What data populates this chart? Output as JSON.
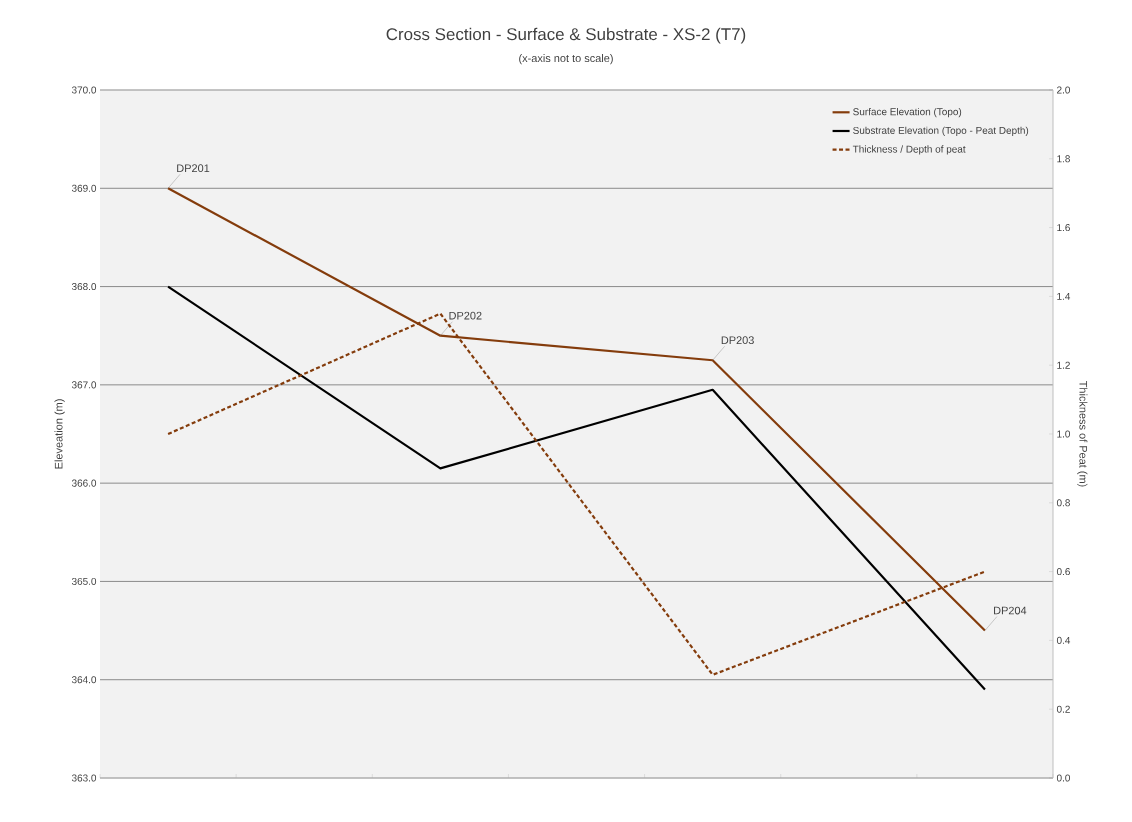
{
  "chart_data": {
    "type": "line",
    "title": "Cross Section - Surface & Substrate - XS-2 (T7)",
    "subtitle": "(x-axis not to scale)",
    "ylabel": "Eleveation (m)",
    "y2label": "Thickness of Peat (m)",
    "categories": [
      null,
      null,
      null,
      null,
      null,
      null,
      null
    ],
    "series": [
      {
        "name": "Surface Elevation (Topo)",
        "color": "#843c0c",
        "line_style": "solid",
        "values": [
          369.0,
          null,
          367.5,
          null,
          367.25,
          null,
          364.5
        ]
      },
      {
        "name": "Substrate Elevation (Topo - Peat Depth)",
        "color": "#000000",
        "line_style": "solid",
        "values": [
          368.0,
          null,
          366.15,
          null,
          366.95,
          null,
          363.9
        ]
      },
      {
        "name": "Thickness / Depth of peat",
        "color": "#843c0c",
        "line_style": "dashed",
        "axis": "y2",
        "values": [
          1.0,
          null,
          1.35,
          null,
          0.3,
          null,
          0.6
        ]
      }
    ],
    "ylim": [
      363,
      370
    ],
    "yticks": [
      {
        "value": 363,
        "label": "363.0"
      },
      {
        "value": 364,
        "label": "364.0"
      },
      {
        "value": 365,
        "label": "365.0"
      },
      {
        "value": 366,
        "label": "366.0"
      },
      {
        "value": 367,
        "label": "367.0"
      },
      {
        "value": 368,
        "label": "368.0"
      },
      {
        "value": 369,
        "label": "369.0"
      },
      {
        "value": 370,
        "label": "370.0"
      }
    ],
    "y2lim": [
      0,
      2
    ],
    "y2ticks": [
      {
        "value": 0,
        "label": "0.0"
      },
      {
        "value": 0.2,
        "label": "0.2"
      },
      {
        "value": 0.4,
        "label": "0.4"
      },
      {
        "value": 0.6,
        "label": "0.6"
      },
      {
        "value": 0.8,
        "label": "0.8"
      },
      {
        "value": 1.0,
        "label": "1.0"
      },
      {
        "value": 1.2,
        "label": "1.2"
      },
      {
        "value": 1.4,
        "label": "1.4"
      },
      {
        "value": 1.6,
        "label": "1.6"
      },
      {
        "value": 1.8,
        "label": "1.8"
      },
      {
        "value": 2.0,
        "label": "2.0"
      }
    ],
    "grid": "y",
    "legend": "top right",
    "marker": "none",
    "annotations": [
      "DP201",
      "DP202",
      "DP203",
      "DP204"
    ]
  }
}
